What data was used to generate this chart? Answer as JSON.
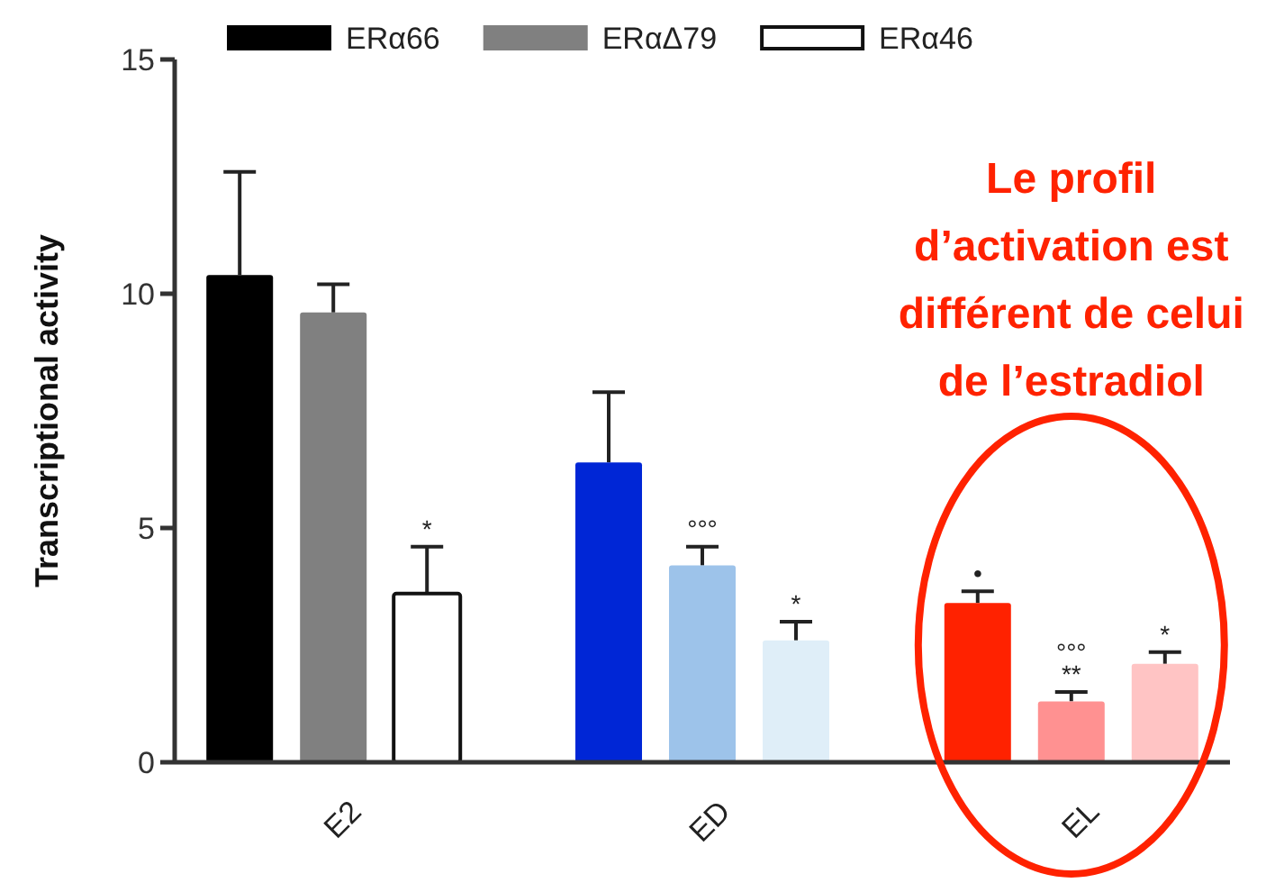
{
  "chart_data": {
    "type": "bar",
    "ylabel": "Transcriptional activity",
    "categories": [
      "E2",
      "ED",
      "EL"
    ],
    "series": [
      {
        "name": "ERα66",
        "color": "#000000",
        "colors": [
          "#000000",
          "#0026d6",
          "#ff2200"
        ],
        "values": [
          10.4,
          6.4,
          3.4
        ],
        "errors": [
          2.2,
          1.5,
          0.25
        ],
        "value_labels": [
          null,
          null,
          "•"
        ]
      },
      {
        "name": "ERαΔ79",
        "color": "#808080",
        "colors": [
          "#808080",
          "#9dc3ea",
          "#ff9191"
        ],
        "values": [
          9.6,
          4.2,
          1.3
        ],
        "errors": [
          0.6,
          0.4,
          0.2
        ],
        "value_labels": [
          null,
          "°°°",
          "°°°\n**"
        ]
      },
      {
        "name": "ERα46",
        "color": "#ffffff",
        "colors": [
          "#ffffff",
          "#dfeef8",
          "#ffc4c4"
        ],
        "values": [
          3.6,
          2.6,
          2.1
        ],
        "errors": [
          1.0,
          0.4,
          0.25
        ],
        "value_labels": [
          "*",
          "*",
          "*"
        ]
      }
    ],
    "ylim": [
      0,
      15
    ],
    "yticks": [
      0,
      5,
      10,
      15
    ],
    "legend": "top",
    "annotations": [
      "Le profil d’activation est différent de celui de l’estradiol"
    ]
  }
}
